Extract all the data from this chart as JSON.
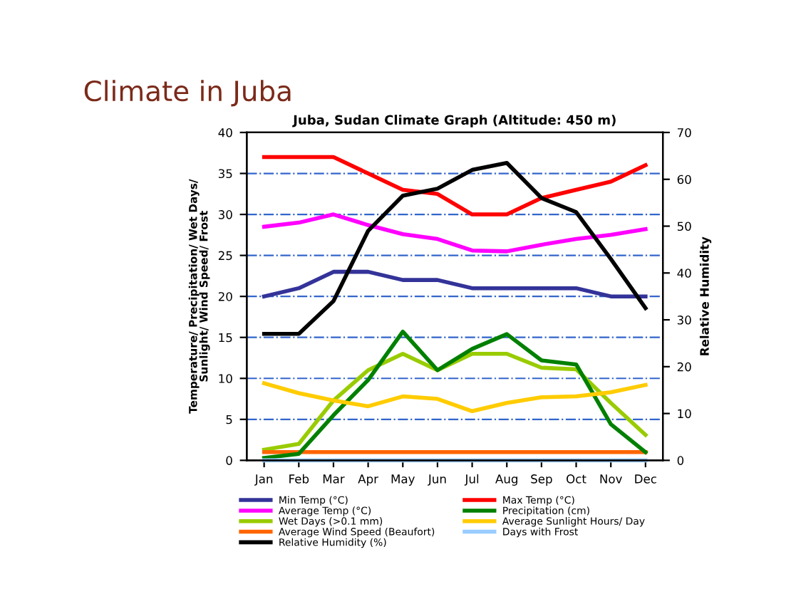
{
  "chart_data": {
    "type": "line",
    "title": "Climate in Juba",
    "subtitle": "Juba, Sudan Climate Graph (Altitude: 450 m)",
    "ylabel": "Temperature/ Precipitation/ Wet Days/ Sunlight/ Wind Speed/ Frost",
    "y2label": "Relative Humidity",
    "categories": [
      "Jan",
      "Feb",
      "Mar",
      "Apr",
      "May",
      "Jun",
      "Jul",
      "Aug",
      "Sep",
      "Oct",
      "Nov",
      "Dec"
    ],
    "series": [
      {
        "name": "Min Temp (°C)",
        "color": "#333399",
        "values": [
          20,
          21,
          23,
          23,
          22,
          22,
          21,
          21,
          21,
          21,
          20,
          20
        ]
      },
      {
        "name": "Average Temp (°C)",
        "color": "#ff00ff",
        "values": [
          28.5,
          29,
          30,
          28.7,
          27.6,
          27,
          25.6,
          25.5,
          26.3,
          27,
          27.5,
          28.2
        ]
      },
      {
        "name": "Wet Days (>0.1 mm)",
        "color": "#99cc00",
        "values": [
          1.3,
          2,
          7.3,
          11,
          13,
          11,
          13,
          13,
          11.3,
          11.1,
          7,
          3.1
        ]
      },
      {
        "name": "Average Wind Speed (Beaufort)",
        "color": "#ff6600",
        "values": [
          1,
          1,
          1,
          1,
          1,
          1,
          1,
          1,
          1,
          1,
          1,
          1
        ]
      },
      {
        "name": "Relative Humidity (%)",
        "color": "#000000",
        "axis": "y2",
        "values": [
          27,
          27,
          34,
          49,
          56.5,
          58,
          62,
          63.5,
          56,
          53,
          43,
          32.5
        ]
      },
      {
        "name": "Max Temp (°C)",
        "color": "#ff0000",
        "values": [
          37,
          37,
          37,
          35,
          33,
          32.5,
          30,
          30,
          32,
          33,
          34,
          36
        ]
      },
      {
        "name": "Precipitation (cm)",
        "color": "#008000",
        "values": [
          0.3,
          0.8,
          5.5,
          9.8,
          15.7,
          11,
          13.6,
          15.4,
          12.2,
          11.7,
          4.4,
          1
        ]
      },
      {
        "name": "Average Sunlight Hours/ Day",
        "color": "#ffcc00",
        "values": [
          9.4,
          8.2,
          7.3,
          6.6,
          7.8,
          7.5,
          6,
          7,
          7.7,
          7.8,
          8.3,
          9.2
        ]
      },
      {
        "name": "Days with Frost",
        "color": "#99ccff",
        "values": [
          0,
          0,
          0,
          0,
          0,
          0,
          0,
          0,
          0,
          0,
          0,
          0
        ]
      }
    ],
    "ylim": [
      0,
      40
    ],
    "yticks": [
      0,
      5,
      10,
      15,
      20,
      25,
      30,
      35,
      40
    ],
    "y2lim": [
      0,
      70
    ],
    "y2ticks": [
      0,
      10,
      20,
      30,
      40,
      50,
      60,
      70
    ],
    "grid": "y",
    "legend": "bottom"
  }
}
